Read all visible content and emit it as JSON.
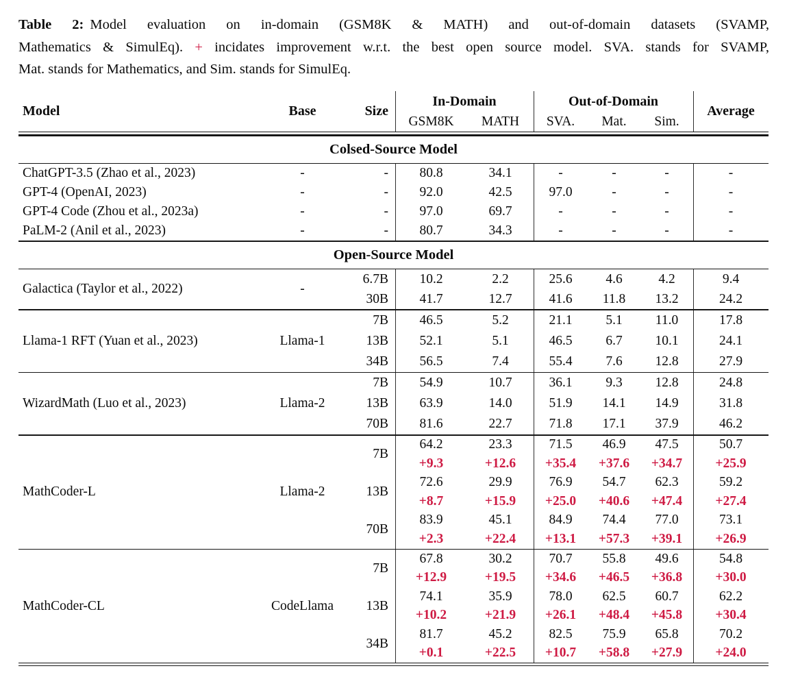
{
  "colors": {
    "accent_red": "#ce1a43",
    "text_black": "#0b0b0b",
    "rule_black": "#161616"
  },
  "caption": {
    "label": "Table 2:",
    "line1": "Model evaluation on in-domain (GSM8K & MATH) and out-of-domain datasets (SVAMP,",
    "line2_pre_plus": "Mathematics & SimulEq). ",
    "plus_sign": "+",
    "line2_post_plus": " incidates improvement w.r.t. the best open source model. SVA. stands for SVAMP,",
    "line3": "Mat. stands for Mathematics, and Sim. stands for SimulEq."
  },
  "table": {
    "header": {
      "model": "Model",
      "base": "Base",
      "size": "Size",
      "group_in_domain": "In-Domain",
      "group_out_of_domain": "Out-of-Domain",
      "subcols": [
        "GSM8K",
        "MATH",
        "SVA.",
        "Mat.",
        "Sim."
      ],
      "average": "Average"
    },
    "sections": [
      {
        "title": "Colsed-Source Model",
        "dividers": false,
        "groups": [
          {
            "model": "ChatGPT-3.5 (Zhao et al., 2023)",
            "base": "-",
            "rows": [
              {
                "size": "-",
                "values": [
                  "80.8",
                  "34.1",
                  "-",
                  "-",
                  "-",
                  "-"
                ]
              }
            ]
          },
          {
            "model": "GPT-4 (OpenAI, 2023)",
            "base": "-",
            "rows": [
              {
                "size": "-",
                "values": [
                  "92.0",
                  "42.5",
                  "97.0",
                  "-",
                  "-",
                  "-"
                ]
              }
            ]
          },
          {
            "model": "GPT-4 Code (Zhou et al., 2023a)",
            "base": "-",
            "rows": [
              {
                "size": "-",
                "values": [
                  "97.0",
                  "69.7",
                  "-",
                  "-",
                  "-",
                  "-"
                ]
              }
            ]
          },
          {
            "model": "PaLM-2 (Anil et al., 2023)",
            "base": "-",
            "rows": [
              {
                "size": "-",
                "values": [
                  "80.7",
                  "34.3",
                  "-",
                  "-",
                  "-",
                  "-"
                ]
              }
            ]
          }
        ]
      },
      {
        "title": "Open-Source Model",
        "dividers": true,
        "groups": [
          {
            "model": "Galactica (Taylor et al., 2022)",
            "base": "-",
            "rows": [
              {
                "size": "6.7B",
                "values": [
                  "10.2",
                  "2.2",
                  "25.6",
                  "4.6",
                  "4.2",
                  "9.4"
                ]
              },
              {
                "size": "30B",
                "values": [
                  "41.7",
                  "12.7",
                  "41.6",
                  "11.8",
                  "13.2",
                  "24.2"
                ]
              }
            ]
          },
          {
            "model": "Llama-1 RFT (Yuan et al., 2023)",
            "base": "Llama-1",
            "rows": [
              {
                "size": "7B",
                "values": [
                  "46.5",
                  "5.2",
                  "21.1",
                  "5.1",
                  "11.0",
                  "17.8"
                ]
              },
              {
                "size": "13B",
                "values": [
                  "52.1",
                  "5.1",
                  "46.5",
                  "6.7",
                  "10.1",
                  "24.1"
                ]
              },
              {
                "size": "34B",
                "values": [
                  "56.5",
                  "7.4",
                  "55.4",
                  "7.6",
                  "12.8",
                  "27.9"
                ]
              }
            ]
          },
          {
            "model": "WizardMath (Luo et al., 2023)",
            "base": "Llama-2",
            "rows": [
              {
                "size": "7B",
                "values": [
                  "54.9",
                  "10.7",
                  "36.1",
                  "9.3",
                  "12.8",
                  "24.8"
                ]
              },
              {
                "size": "13B",
                "values": [
                  "63.9",
                  "14.0",
                  "51.9",
                  "14.1",
                  "14.9",
                  "31.8"
                ]
              },
              {
                "size": "70B",
                "values": [
                  "81.6",
                  "22.7",
                  "71.8",
                  "17.1",
                  "37.9",
                  "46.2"
                ]
              }
            ]
          },
          {
            "model": "MathCoder-L",
            "base": "Llama-2",
            "rows": [
              {
                "size": "7B",
                "values": [
                  "64.2",
                  "23.3",
                  "71.5",
                  "46.9",
                  "47.5",
                  "50.7"
                ],
                "deltas": [
                  "+9.3",
                  "+12.6",
                  "+35.4",
                  "+37.6",
                  "+34.7",
                  "+25.9"
                ]
              },
              {
                "size": "13B",
                "values": [
                  "72.6",
                  "29.9",
                  "76.9",
                  "54.7",
                  "62.3",
                  "59.2"
                ],
                "deltas": [
                  "+8.7",
                  "+15.9",
                  "+25.0",
                  "+40.6",
                  "+47.4",
                  "+27.4"
                ]
              },
              {
                "size": "70B",
                "values": [
                  "83.9",
                  "45.1",
                  "84.9",
                  "74.4",
                  "77.0",
                  "73.1"
                ],
                "deltas": [
                  "+2.3",
                  "+22.4",
                  "+13.1",
                  "+57.3",
                  "+39.1",
                  "+26.9"
                ]
              }
            ]
          },
          {
            "model": "MathCoder-CL",
            "base": "CodeLlama",
            "rows": [
              {
                "size": "7B",
                "values": [
                  "67.8",
                  "30.2",
                  "70.7",
                  "55.8",
                  "49.6",
                  "54.8"
                ],
                "deltas": [
                  "+12.9",
                  "+19.5",
                  "+34.6",
                  "+46.5",
                  "+36.8",
                  "+30.0"
                ]
              },
              {
                "size": "13B",
                "values": [
                  "74.1",
                  "35.9",
                  "78.0",
                  "62.5",
                  "60.7",
                  "62.2"
                ],
                "deltas": [
                  "+10.2",
                  "+21.9",
                  "+26.1",
                  "+48.4",
                  "+45.8",
                  "+30.4"
                ]
              },
              {
                "size": "34B",
                "values": [
                  "81.7",
                  "45.2",
                  "82.5",
                  "75.9",
                  "65.8",
                  "70.2"
                ],
                "deltas": [
                  "+0.1",
                  "+22.5",
                  "+10.7",
                  "+58.8",
                  "+27.9",
                  "+24.0"
                ]
              }
            ]
          }
        ]
      }
    ]
  }
}
